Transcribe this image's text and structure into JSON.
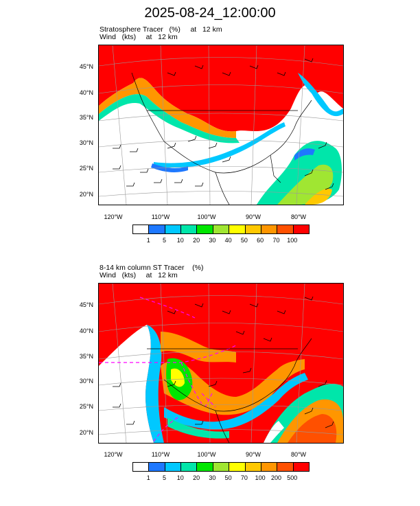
{
  "title": "2025-08-24_12:00:00",
  "panels": [
    {
      "id": "top",
      "line1": "Stratosphere Tracer   (%)     at   12 km",
      "line2": "Wind   (kts)     at   12 km",
      "colorbar": {
        "labels": [
          "1",
          "5",
          "10",
          "20",
          "30",
          "40",
          "50",
          "60",
          "70",
          "100"
        ],
        "colors": [
          "#ffffff",
          "#1e78ff",
          "#00c8ff",
          "#00e6aa",
          "#00e600",
          "#a0e632",
          "#ffff00",
          "#ffc800",
          "#ff9600",
          "#ff5000",
          "#ff0000"
        ]
      }
    },
    {
      "id": "bottom",
      "line1": "8-14 km column ST Tracer    (%)",
      "line2": "Wind   (kts)     at   12 km",
      "colorbar": {
        "labels": [
          "1",
          "5",
          "10",
          "20",
          "30",
          "50",
          "70",
          "100",
          "200",
          "500"
        ],
        "colors": [
          "#ffffff",
          "#1e78ff",
          "#00c8ff",
          "#00e6aa",
          "#00e600",
          "#a0e632",
          "#ffff00",
          "#ffc800",
          "#ff9600",
          "#ff5000",
          "#ff0000"
        ]
      }
    }
  ],
  "lat_labels": [
    "45°N",
    "40°N",
    "35°N",
    "30°N",
    "25°N",
    "20°N"
  ],
  "lon_labels": [
    "120°W",
    "110°W",
    "100°W",
    "90°W",
    "80°W"
  ]
}
